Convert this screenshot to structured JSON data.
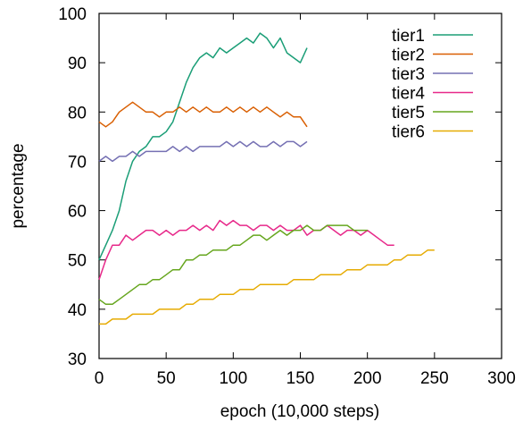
{
  "chart_data": {
    "type": "line",
    "xlabel": "epoch (10,000 steps)",
    "ylabel": "percentage",
    "xlim": [
      0,
      300
    ],
    "ylim": [
      30,
      100
    ],
    "xticks": [
      0,
      50,
      100,
      150,
      200,
      250,
      300
    ],
    "yticks": [
      30,
      40,
      50,
      60,
      70,
      80,
      90,
      100
    ],
    "grid": false,
    "legend_position": "top-right",
    "series": [
      {
        "name": "tier1",
        "color": "#1b9e77",
        "x": [
          0,
          5,
          10,
          15,
          20,
          25,
          30,
          35,
          40,
          45,
          50,
          55,
          60,
          65,
          70,
          75,
          80,
          85,
          90,
          95,
          100,
          105,
          110,
          115,
          120,
          125,
          130,
          135,
          140,
          145,
          150,
          155
        ],
        "values": [
          50,
          53,
          56,
          60,
          66,
          70,
          72,
          73,
          75,
          75,
          76,
          78,
          82,
          86,
          89,
          91,
          92,
          91,
          93,
          92,
          93,
          94,
          95,
          94,
          96,
          95,
          93,
          95,
          92,
          91,
          90,
          93
        ]
      },
      {
        "name": "tier2",
        "color": "#d95f02",
        "x": [
          0,
          5,
          10,
          15,
          20,
          25,
          30,
          35,
          40,
          45,
          50,
          55,
          60,
          65,
          70,
          75,
          80,
          85,
          90,
          95,
          100,
          105,
          110,
          115,
          120,
          125,
          130,
          135,
          140,
          145,
          150,
          155
        ],
        "values": [
          78,
          77,
          78,
          80,
          81,
          82,
          81,
          80,
          80,
          79,
          80,
          80,
          81,
          80,
          81,
          80,
          81,
          80,
          80,
          81,
          80,
          81,
          80,
          81,
          80,
          81,
          80,
          79,
          80,
          79,
          79,
          77
        ]
      },
      {
        "name": "tier3",
        "color": "#7570b3",
        "x": [
          0,
          5,
          10,
          15,
          20,
          25,
          30,
          35,
          40,
          45,
          50,
          55,
          60,
          65,
          70,
          75,
          80,
          85,
          90,
          95,
          100,
          105,
          110,
          115,
          120,
          125,
          130,
          135,
          140,
          145,
          150,
          155
        ],
        "values": [
          70,
          71,
          70,
          71,
          71,
          72,
          71,
          72,
          72,
          72,
          72,
          73,
          72,
          73,
          72,
          73,
          73,
          73,
          73,
          74,
          73,
          74,
          73,
          74,
          73,
          73,
          74,
          73,
          74,
          74,
          73,
          74
        ]
      },
      {
        "name": "tier4",
        "color": "#e7298a",
        "x": [
          0,
          5,
          10,
          15,
          20,
          25,
          30,
          35,
          40,
          45,
          50,
          55,
          60,
          65,
          70,
          75,
          80,
          85,
          90,
          95,
          100,
          105,
          110,
          115,
          120,
          125,
          130,
          135,
          140,
          145,
          150,
          155,
          160,
          165,
          170,
          175,
          180,
          185,
          190,
          195,
          200,
          205,
          210,
          215,
          220
        ],
        "values": [
          46,
          50,
          53,
          53,
          55,
          54,
          55,
          56,
          56,
          55,
          56,
          55,
          56,
          56,
          57,
          56,
          57,
          56,
          58,
          57,
          58,
          57,
          57,
          56,
          57,
          57,
          56,
          57,
          56,
          56,
          57,
          55,
          56,
          56,
          57,
          56,
          55,
          56,
          56,
          55,
          56,
          55,
          54,
          53,
          53
        ]
      },
      {
        "name": "tier5",
        "color": "#66a61e",
        "x": [
          0,
          5,
          10,
          15,
          20,
          25,
          30,
          35,
          40,
          45,
          50,
          55,
          60,
          65,
          70,
          75,
          80,
          85,
          90,
          95,
          100,
          105,
          110,
          115,
          120,
          125,
          130,
          135,
          140,
          145,
          150,
          155,
          160,
          165,
          170,
          175,
          180,
          185,
          190,
          195,
          200
        ],
        "values": [
          42,
          41,
          41,
          42,
          43,
          44,
          45,
          45,
          46,
          46,
          47,
          48,
          48,
          50,
          50,
          51,
          51,
          52,
          52,
          52,
          53,
          53,
          54,
          55,
          55,
          54,
          55,
          56,
          55,
          56,
          56,
          57,
          56,
          56,
          57,
          57,
          57,
          57,
          56,
          56,
          56
        ]
      },
      {
        "name": "tier6",
        "color": "#e6ab02",
        "x": [
          0,
          5,
          10,
          15,
          20,
          25,
          30,
          35,
          40,
          45,
          50,
          55,
          60,
          65,
          70,
          75,
          80,
          85,
          90,
          95,
          100,
          105,
          110,
          115,
          120,
          125,
          130,
          135,
          140,
          145,
          150,
          155,
          160,
          165,
          170,
          175,
          180,
          185,
          190,
          195,
          200,
          205,
          210,
          215,
          220,
          225,
          230,
          235,
          240,
          245,
          250
        ],
        "values": [
          37,
          37,
          38,
          38,
          38,
          39,
          39,
          39,
          39,
          40,
          40,
          40,
          40,
          41,
          41,
          42,
          42,
          42,
          43,
          43,
          43,
          44,
          44,
          44,
          45,
          45,
          45,
          45,
          45,
          46,
          46,
          46,
          46,
          47,
          47,
          47,
          47,
          48,
          48,
          48,
          49,
          49,
          49,
          49,
          50,
          50,
          51,
          51,
          51,
          52,
          52
        ]
      }
    ]
  }
}
